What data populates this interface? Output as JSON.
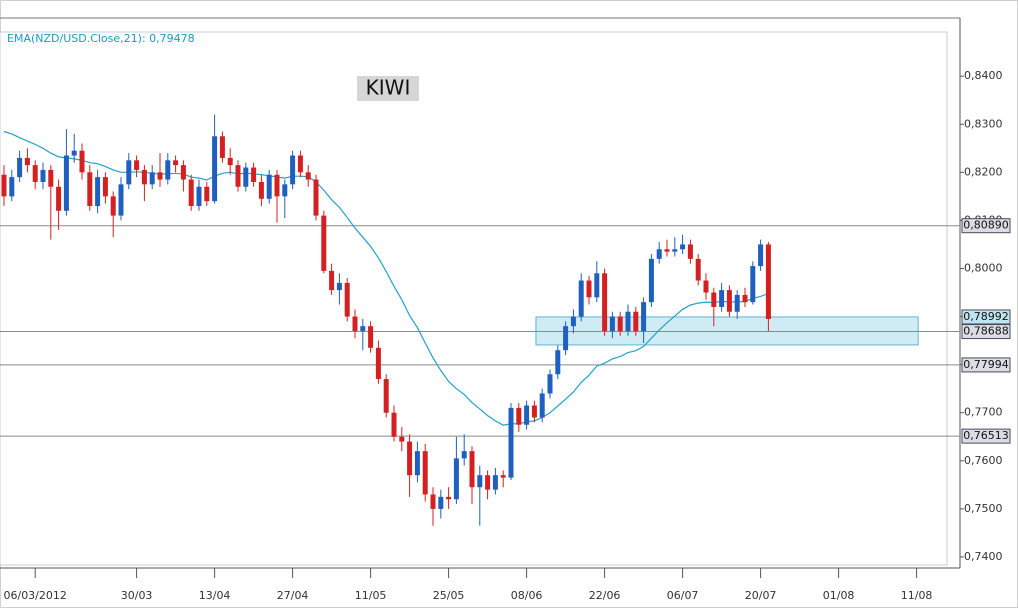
{
  "chart_data": {
    "type": "candlestick",
    "title": "KIWI",
    "categories": [
      null,
      null,
      null,
      null,
      "06/03/2012",
      null,
      null,
      null,
      null,
      null,
      null,
      null,
      null,
      null,
      null,
      null,
      null,
      "30/03",
      null,
      null,
      null,
      null,
      null,
      null,
      null,
      null,
      null,
      "13/04",
      null,
      null,
      null,
      null,
      null,
      null,
      null,
      null,
      null,
      "27/04",
      null,
      null,
      null,
      null,
      null,
      null,
      null,
      null,
      null,
      "11/05",
      null,
      null,
      null,
      null,
      null,
      null,
      null,
      null,
      null,
      "25/05",
      null,
      null,
      null,
      null,
      null,
      null,
      null,
      null,
      null,
      "08/06",
      null,
      null,
      null,
      null,
      null,
      null,
      null,
      null,
      null,
      "22/06",
      null,
      null,
      null,
      null,
      null,
      null,
      null,
      null,
      null,
      "06/07",
      null,
      null,
      null,
      null,
      null,
      null,
      null,
      null,
      null,
      "20/07",
      null,
      null,
      null,
      null,
      null,
      null,
      null,
      null,
      null,
      "01/08",
      null,
      null,
      null,
      null,
      null,
      null,
      null,
      null,
      null,
      "11/08",
      null,
      null,
      null
    ],
    "ohlc": [
      [
        0.8195,
        0.8215,
        0.813,
        0.815
      ],
      [
        0.815,
        0.8205,
        0.814,
        0.819
      ],
      [
        0.819,
        0.8245,
        0.818,
        0.823
      ],
      [
        0.823,
        0.825,
        0.82,
        0.8215
      ],
      [
        0.8215,
        0.8225,
        0.8165,
        0.818
      ],
      [
        0.818,
        0.822,
        0.8165,
        0.8205
      ],
      [
        0.8205,
        0.8215,
        0.806,
        0.817
      ],
      [
        0.817,
        0.8185,
        0.808,
        0.812
      ],
      [
        0.812,
        0.829,
        0.811,
        0.8235
      ],
      [
        0.8235,
        0.828,
        0.822,
        0.8245
      ],
      [
        0.8245,
        0.826,
        0.8185,
        0.82
      ],
      [
        0.82,
        0.8215,
        0.812,
        0.813
      ],
      [
        0.813,
        0.8205,
        0.8115,
        0.819
      ],
      [
        0.819,
        0.82,
        0.8135,
        0.815
      ],
      [
        0.815,
        0.816,
        0.8065,
        0.811
      ],
      [
        0.811,
        0.819,
        0.81,
        0.8175
      ],
      [
        0.8175,
        0.824,
        0.8165,
        0.8225
      ],
      [
        0.8225,
        0.8235,
        0.819,
        0.8205
      ],
      [
        0.8205,
        0.8215,
        0.814,
        0.8175
      ],
      [
        0.8175,
        0.8215,
        0.8165,
        0.82
      ],
      [
        0.82,
        0.824,
        0.817,
        0.8185
      ],
      [
        0.8185,
        0.824,
        0.8175,
        0.8225
      ],
      [
        0.8225,
        0.8235,
        0.82,
        0.8215
      ],
      [
        0.8215,
        0.8225,
        0.816,
        0.8185
      ],
      [
        0.8185,
        0.8195,
        0.812,
        0.813
      ],
      [
        0.813,
        0.8185,
        0.812,
        0.817
      ],
      [
        0.817,
        0.818,
        0.813,
        0.814
      ],
      [
        0.814,
        0.832,
        0.8135,
        0.8275
      ],
      [
        0.8275,
        0.8285,
        0.822,
        0.823
      ],
      [
        0.823,
        0.825,
        0.8195,
        0.8215
      ],
      [
        0.8215,
        0.8225,
        0.816,
        0.817
      ],
      [
        0.817,
        0.822,
        0.816,
        0.821
      ],
      [
        0.821,
        0.822,
        0.817,
        0.818
      ],
      [
        0.818,
        0.8195,
        0.813,
        0.8145
      ],
      [
        0.8145,
        0.8205,
        0.8135,
        0.8195
      ],
      [
        0.8195,
        0.8205,
        0.8095,
        0.815
      ],
      [
        0.815,
        0.8185,
        0.8105,
        0.8175
      ],
      [
        0.8175,
        0.8245,
        0.8165,
        0.8235
      ],
      [
        0.8235,
        0.8245,
        0.819,
        0.82
      ],
      [
        0.82,
        0.8215,
        0.817,
        0.8185
      ],
      [
        0.8185,
        0.8195,
        0.81,
        0.811
      ],
      [
        0.811,
        0.812,
        0.799,
        0.7995
      ],
      [
        0.7995,
        0.801,
        0.7945,
        0.7955
      ],
      [
        0.7955,
        0.799,
        0.7925,
        0.797
      ],
      [
        0.797,
        0.798,
        0.789,
        0.79
      ],
      [
        0.79,
        0.7915,
        0.7855,
        0.787
      ],
      [
        0.787,
        0.7895,
        0.783,
        0.788
      ],
      [
        0.788,
        0.789,
        0.7825,
        0.7835
      ],
      [
        0.7835,
        0.785,
        0.776,
        0.777
      ],
      [
        0.777,
        0.778,
        0.769,
        0.77
      ],
      [
        0.77,
        0.7715,
        0.764,
        0.765
      ],
      [
        0.765,
        0.767,
        0.762,
        0.764
      ],
      [
        0.764,
        0.7655,
        0.7525,
        0.757
      ],
      [
        0.757,
        0.764,
        0.7555,
        0.762
      ],
      [
        0.762,
        0.7635,
        0.7515,
        0.753
      ],
      [
        0.753,
        0.7545,
        0.7465,
        0.75
      ],
      [
        0.75,
        0.754,
        0.748,
        0.7525
      ],
      [
        0.7525,
        0.7545,
        0.75,
        0.752
      ],
      [
        0.752,
        0.765,
        0.751,
        0.7605
      ],
      [
        0.7605,
        0.7655,
        0.759,
        0.762
      ],
      [
        0.762,
        0.763,
        0.751,
        0.7545
      ],
      [
        0.7545,
        0.759,
        0.7465,
        0.757
      ],
      [
        0.757,
        0.758,
        0.752,
        0.754
      ],
      [
        0.754,
        0.7585,
        0.753,
        0.757
      ],
      [
        0.757,
        0.758,
        0.7545,
        0.7565
      ],
      [
        0.7565,
        0.772,
        0.756,
        0.771
      ],
      [
        0.771,
        0.772,
        0.766,
        0.7675
      ],
      [
        0.7675,
        0.7725,
        0.7665,
        0.7715
      ],
      [
        0.7715,
        0.7725,
        0.768,
        0.769
      ],
      [
        0.769,
        0.775,
        0.768,
        0.774
      ],
      [
        0.774,
        0.779,
        0.773,
        0.778
      ],
      [
        0.778,
        0.784,
        0.777,
        0.783
      ],
      [
        0.783,
        0.789,
        0.782,
        0.788
      ],
      [
        0.788,
        0.7915,
        0.7865,
        0.79
      ],
      [
        0.79,
        0.799,
        0.789,
        0.7975
      ],
      [
        0.7975,
        0.7985,
        0.7925,
        0.794
      ],
      [
        0.794,
        0.8015,
        0.793,
        0.799
      ],
      [
        0.799,
        0.8,
        0.786,
        0.787
      ],
      [
        0.787,
        0.791,
        0.7855,
        0.79
      ],
      [
        0.79,
        0.791,
        0.786,
        0.787
      ],
      [
        0.787,
        0.7925,
        0.786,
        0.791
      ],
      [
        0.791,
        0.792,
        0.786,
        0.787
      ],
      [
        0.787,
        0.794,
        0.7845,
        0.793
      ],
      [
        0.793,
        0.803,
        0.792,
        0.802
      ],
      [
        0.802,
        0.8055,
        0.801,
        0.804
      ],
      [
        0.804,
        0.806,
        0.8025,
        0.8035
      ],
      [
        0.8035,
        0.8065,
        0.8025,
        0.804
      ],
      [
        0.804,
        0.807,
        0.803,
        0.805
      ],
      [
        0.805,
        0.806,
        0.801,
        0.802
      ],
      [
        0.802,
        0.803,
        0.7965,
        0.7975
      ],
      [
        0.7975,
        0.799,
        0.7935,
        0.795
      ],
      [
        0.795,
        0.796,
        0.788,
        0.792
      ],
      [
        0.792,
        0.797,
        0.791,
        0.7955
      ],
      [
        0.7955,
        0.7965,
        0.79,
        0.791
      ],
      [
        0.791,
        0.7955,
        0.7895,
        0.7945
      ],
      [
        0.7945,
        0.796,
        0.792,
        0.793
      ],
      [
        0.793,
        0.8015,
        0.7925,
        0.8005
      ],
      [
        0.8005,
        0.806,
        0.7995,
        0.805
      ],
      [
        0.805,
        0.8055,
        0.787,
        0.7895
      ],
      null,
      null,
      null,
      null,
      null,
      null,
      null,
      null,
      null,
      null,
      null,
      null,
      null,
      null,
      null,
      null,
      null,
      null,
      null,
      null,
      null,
      null
    ],
    "up_color": "#1f5fbf",
    "down_color": "#d42020",
    "series": [
      {
        "name": "EMA(NZD/USD.Close,21): 0,79478",
        "color": "#22a3c9",
        "values": [
          0.8285,
          0.828,
          0.8272,
          0.8265,
          0.8258,
          0.825,
          0.824,
          0.8232,
          0.823,
          0.8228,
          0.8225,
          0.822,
          0.8218,
          0.8212,
          0.8205,
          0.82,
          0.82,
          0.8201,
          0.82,
          0.8198,
          0.8196,
          0.8197,
          0.8198,
          0.8196,
          0.819,
          0.8188,
          0.8184,
          0.8192,
          0.8198,
          0.82,
          0.8197,
          0.8198,
          0.8197,
          0.8195,
          0.8193,
          0.819,
          0.8188,
          0.8192,
          0.8192,
          0.8191,
          0.818,
          0.8163,
          0.8143,
          0.8127,
          0.8106,
          0.8084,
          0.8065,
          0.8046,
          0.8022,
          0.7994,
          0.7963,
          0.7935,
          0.7902,
          0.7877,
          0.7845,
          0.7814,
          0.7788,
          0.7765,
          0.775,
          0.7738,
          0.7721,
          0.7708,
          0.7694,
          0.7683,
          0.7674,
          0.7677,
          0.7677,
          0.7681,
          0.7683,
          0.769,
          0.77,
          0.7714,
          0.7728,
          0.7743,
          0.7763,
          0.7778,
          0.7797,
          0.7803,
          0.7812,
          0.7817,
          0.7825,
          0.7829,
          0.7838,
          0.7855,
          0.7872,
          0.7887,
          0.7901,
          0.7915,
          0.7924,
          0.7928,
          0.793,
          0.7929,
          0.7932,
          0.793,
          0.7931,
          0.7931,
          0.7938,
          0.7942,
          0.7948,
          null,
          null,
          null,
          null,
          null,
          null,
          null,
          null,
          null,
          null,
          null,
          null,
          null,
          null,
          null,
          null,
          null,
          null,
          null,
          null,
          null,
          null
        ]
      }
    ],
    "ylim": [
      0.7377,
      0.8521
    ],
    "yticks": [
      {
        "value": 0.74,
        "label": "0,7400"
      },
      {
        "value": 0.75,
        "label": "0,7500"
      },
      {
        "value": 0.76,
        "label": "0,7600"
      },
      {
        "value": 0.77,
        "label": "0,7700"
      },
      {
        "value": 0.78,
        "label": "0,7800"
      },
      {
        "value": 0.79,
        "label": "0,7900"
      },
      {
        "value": 0.8,
        "label": "0,8000"
      },
      {
        "value": 0.81,
        "label": "0,8100"
      },
      {
        "value": 0.82,
        "label": "0,8200"
      },
      {
        "value": 0.83,
        "label": "0,8300"
      },
      {
        "value": 0.84,
        "label": "0,8400"
      }
    ],
    "levels": [
      {
        "value": 0.8089,
        "label": "0,80890"
      },
      {
        "value": 0.78688,
        "label": "0,78688"
      },
      {
        "value": 0.77994,
        "label": "0,77994"
      },
      {
        "value": 0.76513,
        "label": "0,76513"
      }
    ],
    "zone": {
      "top": {
        "value": 0.78992,
        "label": "0,78992"
      },
      "bottom": 0.7841
    }
  }
}
